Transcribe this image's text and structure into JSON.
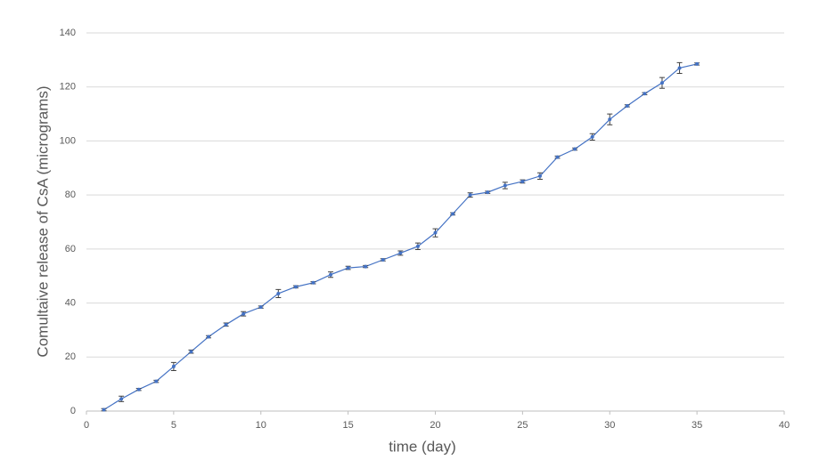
{
  "chart_data": {
    "type": "line",
    "x_label": "time (day)",
    "y_label": "Comultaive release of CsA (micrograms)",
    "x": [
      1,
      2,
      3,
      4,
      5,
      6,
      7,
      8,
      9,
      10,
      11,
      12,
      13,
      14,
      15,
      16,
      17,
      18,
      19,
      20,
      21,
      22,
      23,
      24,
      25,
      26,
      27,
      28,
      29,
      30,
      31,
      32,
      33,
      34,
      35
    ],
    "values": [
      0.5,
      4.5,
      8,
      11,
      16.5,
      22,
      27.5,
      32,
      36,
      38.5,
      43.5,
      46,
      47.5,
      50.5,
      53,
      53.5,
      56,
      58.5,
      61,
      66,
      73,
      80,
      81,
      83.5,
      85,
      87,
      94,
      97,
      101.5,
      108,
      113,
      117.5,
      121.5,
      127,
      128.5
    ],
    "errors": [
      0.4,
      1,
      0.4,
      0.4,
      1.5,
      0.6,
      0.4,
      0.6,
      0.8,
      0.4,
      1.5,
      0.4,
      0.4,
      1,
      0.6,
      0.4,
      0.4,
      0.8,
      1.2,
      1.5,
      0.4,
      0.8,
      0.4,
      1.2,
      0.6,
      1.2,
      0.4,
      0.4,
      1.2,
      2,
      0.4,
      0.4,
      2,
      2,
      0.4
    ],
    "color": "#4472c4",
    "xlim": [
      0,
      40
    ],
    "xticks": [
      0,
      5,
      10,
      15,
      20,
      25,
      30,
      35,
      40
    ],
    "ylim": [
      0,
      140
    ],
    "yticks": [
      0,
      20,
      40,
      60,
      80,
      100,
      120,
      140
    ],
    "grid": true
  }
}
